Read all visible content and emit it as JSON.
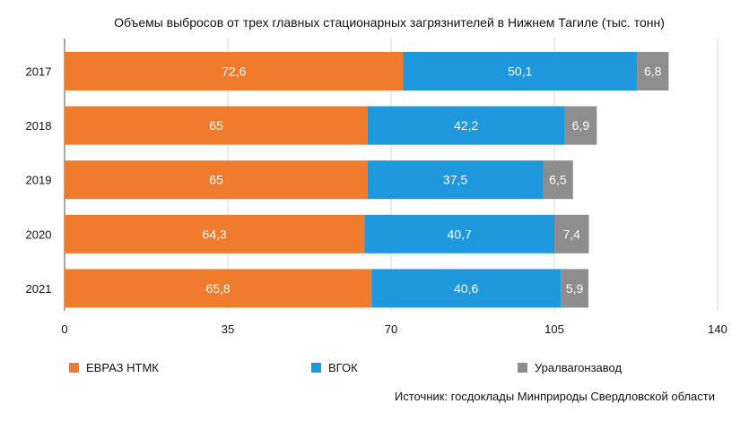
{
  "chart_data": {
    "type": "bar",
    "orientation": "horizontal",
    "stacked": true,
    "title": "Объемы выбросов от трех главных стационарных загрязнителей в Нижнем Тагиле (тыс. тонн)",
    "categories": [
      "2017",
      "2018",
      "2019",
      "2020",
      "2021"
    ],
    "series": [
      {
        "name": "ЕВРАЗ НТМК",
        "color": "#F07B2D",
        "values": [
          72.6,
          65,
          65,
          64.3,
          65.8
        ],
        "labels": [
          "72,6",
          "65",
          "65",
          "64,3",
          "65,8"
        ]
      },
      {
        "name": "ВГОК",
        "color": "#1E97DC",
        "values": [
          50.1,
          42.2,
          37.5,
          40.7,
          40.6
        ],
        "labels": [
          "50,1",
          "42,2",
          "37,5",
          "40,7",
          "40,6"
        ]
      },
      {
        "name": "Уралвагонзавод",
        "color": "#8D8D8D",
        "values": [
          6.8,
          6.9,
          6.5,
          7.4,
          5.9
        ],
        "labels": [
          "6,8",
          "6,9",
          "6,5",
          "7,4",
          "5,9"
        ]
      }
    ],
    "xlim": [
      0,
      140
    ],
    "xticks": [
      0,
      35,
      70,
      105,
      140
    ],
    "grid": true,
    "legend_position": "bottom",
    "source": "Источник: госдоклады Минприроды Свердловской области"
  }
}
